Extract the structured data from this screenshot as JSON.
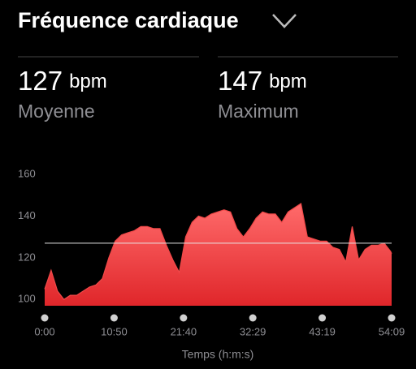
{
  "header": {
    "title": "Fréquence cardiaque"
  },
  "stats": [
    {
      "value": 127,
      "unit": "bpm",
      "label": "Moyenne"
    },
    {
      "value": 147,
      "unit": "bpm",
      "label": "Maximum"
    }
  ],
  "chart_data": {
    "type": "area",
    "x_label": "Temps (h:m:s)",
    "color": "#f04848",
    "x": [
      0,
      60,
      120,
      180,
      240,
      300,
      360,
      420,
      480,
      540,
      600,
      660,
      720,
      780,
      840,
      900,
      960,
      1020,
      1080,
      1140,
      1200,
      1260,
      1320,
      1380,
      1440,
      1500,
      1560,
      1620,
      1680,
      1740,
      1800,
      1860,
      1920,
      1980,
      2040,
      2100,
      2160,
      2220,
      2280,
      2340,
      2400,
      2460,
      2520,
      2580,
      2640,
      2700,
      2760,
      2820,
      2880,
      2940,
      3000,
      3060,
      3120,
      3180,
      3240,
      3249
    ],
    "values": [
      105,
      114,
      104,
      100,
      102,
      102,
      104,
      106,
      107,
      110,
      120,
      128,
      131,
      132,
      133,
      135,
      135,
      134,
      134,
      126,
      119,
      113,
      130,
      137,
      140,
      139,
      141,
      142,
      143,
      142,
      134,
      130,
      134,
      139,
      142,
      141,
      141,
      137,
      142,
      144,
      146,
      130,
      129,
      128,
      128,
      125,
      124,
      118,
      135,
      119,
      124,
      126,
      126,
      127,
      123,
      122
    ],
    "xlim": [
      0,
      3249
    ],
    "ylim": [
      97,
      160
    ],
    "xticks": [
      {
        "value": 0,
        "label": "0:00"
      },
      {
        "value": 650,
        "label": "10:50"
      },
      {
        "value": 1300,
        "label": "21:40"
      },
      {
        "value": 1949,
        "label": "32:29"
      },
      {
        "value": 2599,
        "label": "43:19"
      },
      {
        "value": 3249,
        "label": "54:09"
      }
    ],
    "yticks": [
      100,
      120,
      140,
      160
    ]
  }
}
